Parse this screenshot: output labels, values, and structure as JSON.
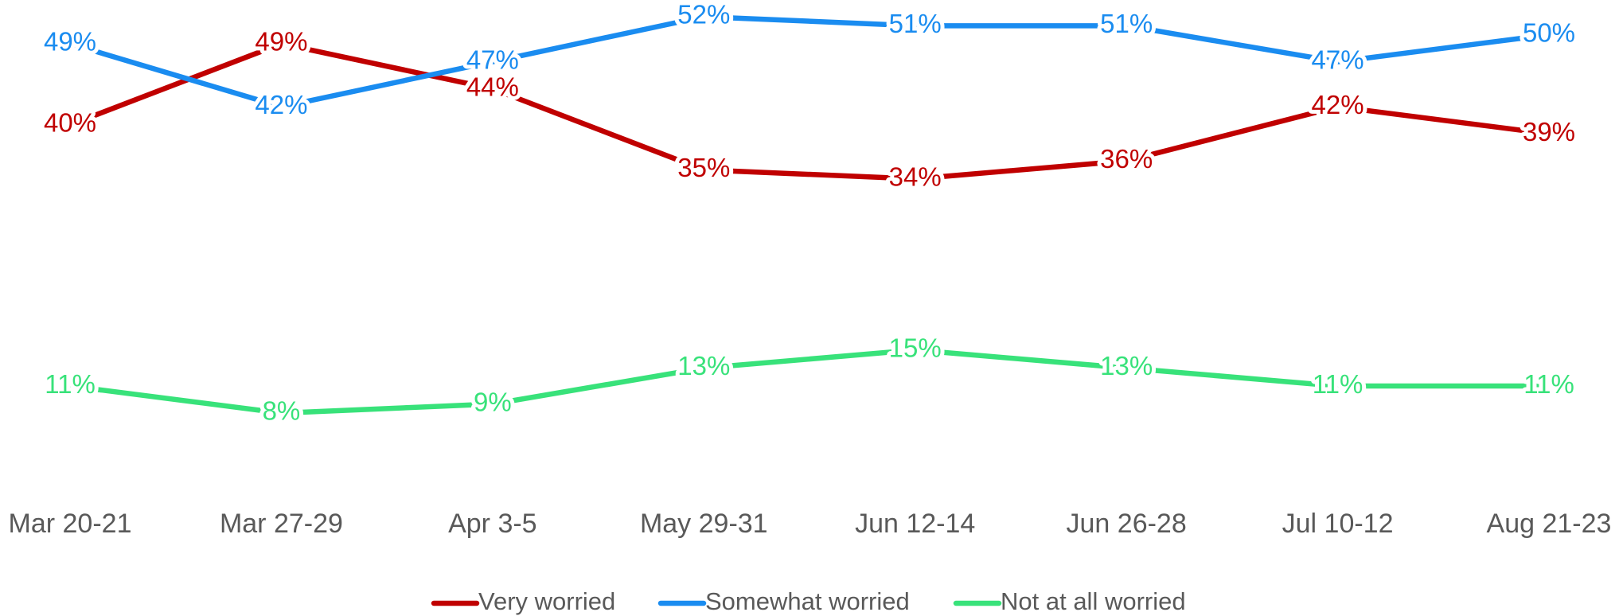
{
  "chart_data": {
    "type": "line",
    "categories": [
      "Mar 20-21",
      "Mar 27-29",
      "Apr 3-5",
      "May 29-31",
      "Jun 12-14",
      "Jun 26-28",
      "Jul 10-12",
      "Aug 21-23"
    ],
    "series": [
      {
        "name": "Very worried",
        "color": "#c00000",
        "values": [
          40,
          49,
          44,
          35,
          34,
          36,
          42,
          39
        ],
        "value_labels": [
          "40%",
          "49%",
          "44%",
          "35%",
          "34%",
          "36%",
          "42%",
          "39%"
        ]
      },
      {
        "name": "Somewhat worried",
        "color": "#1a8cf0",
        "values": [
          49,
          42,
          47,
          52,
          51,
          51,
          47,
          50
        ],
        "value_labels": [
          "49%",
          "42%",
          "47%",
          "52%",
          "51%",
          "51%",
          "47%",
          "50%"
        ]
      },
      {
        "name": "Not at all worried",
        "color": "#38e27a",
        "values": [
          11,
          8,
          9,
          13,
          15,
          13,
          11,
          11
        ],
        "value_labels": [
          "11%",
          "8%",
          "9%",
          "13%",
          "15%",
          "13%",
          "11%",
          "11%"
        ]
      }
    ],
    "legend": "bottom"
  }
}
